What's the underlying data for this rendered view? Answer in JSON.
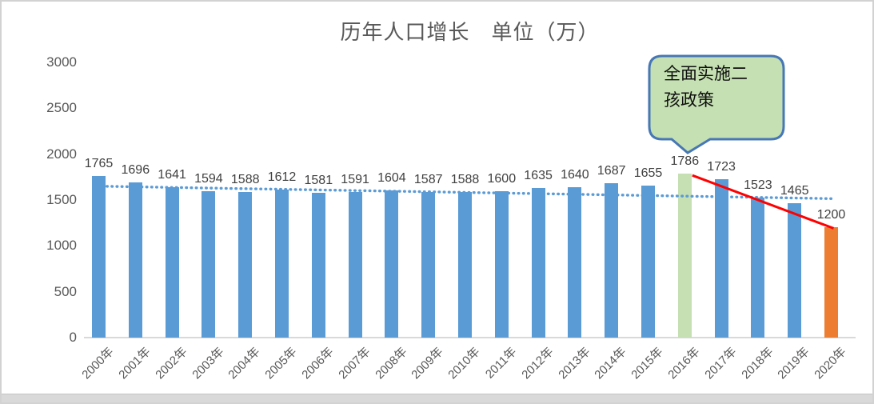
{
  "colors": {
    "bar_default": "#5B9BD5",
    "bar_2016": "#C6E0B4",
    "bar_2020": "#ED7D31",
    "trendline": "#5B9BD5",
    "drop_line": "#FF0000",
    "callout_fill": "#C5E0B2",
    "callout_border": "#4777B4",
    "axis_line": "#D9D9D9",
    "axis_text": "#595959",
    "value_label_text": "#404040",
    "title_text": "#595959"
  },
  "callout": {
    "line1": "全面实施二",
    "line2": "孩政策",
    "full_text": "全面实施二孩政策",
    "points_to": "2016年"
  },
  "chart_data": {
    "type": "bar",
    "title": "历年人口增长　单位（万）",
    "categories": [
      "2000年",
      "2001年",
      "2002年",
      "2003年",
      "2004年",
      "2005年",
      "2006年",
      "2007年",
      "2008年",
      "2009年",
      "2010年",
      "2011年",
      "2012年",
      "2013年",
      "2014年",
      "2015年",
      "2016年",
      "2017年",
      "2018年",
      "2019年",
      "2020年"
    ],
    "values": [
      1765,
      1696,
      1641,
      1594,
      1588,
      1612,
      1581,
      1591,
      1604,
      1587,
      1588,
      1600,
      1635,
      1640,
      1687,
      1655,
      1786,
      1723,
      1523,
      1465,
      1200
    ],
    "data_labels_shown": true,
    "xlabel": "",
    "ylabel": "",
    "ylim": [
      0,
      3000
    ],
    "yticks": [
      0,
      500,
      1000,
      1500,
      2000,
      2500,
      3000
    ],
    "grid": false,
    "legend": "none",
    "highlighted_bars": {
      "16": "bar_2016",
      "20": "bar_2020"
    },
    "trendline": {
      "style": "dotted",
      "start_value": 1650,
      "end_value": 1515
    },
    "drop_line": {
      "from_index": 16,
      "to_index": 20,
      "style": "solid"
    },
    "annotation": {
      "text": "全面实施二孩政策",
      "target_category": "2016年"
    }
  }
}
